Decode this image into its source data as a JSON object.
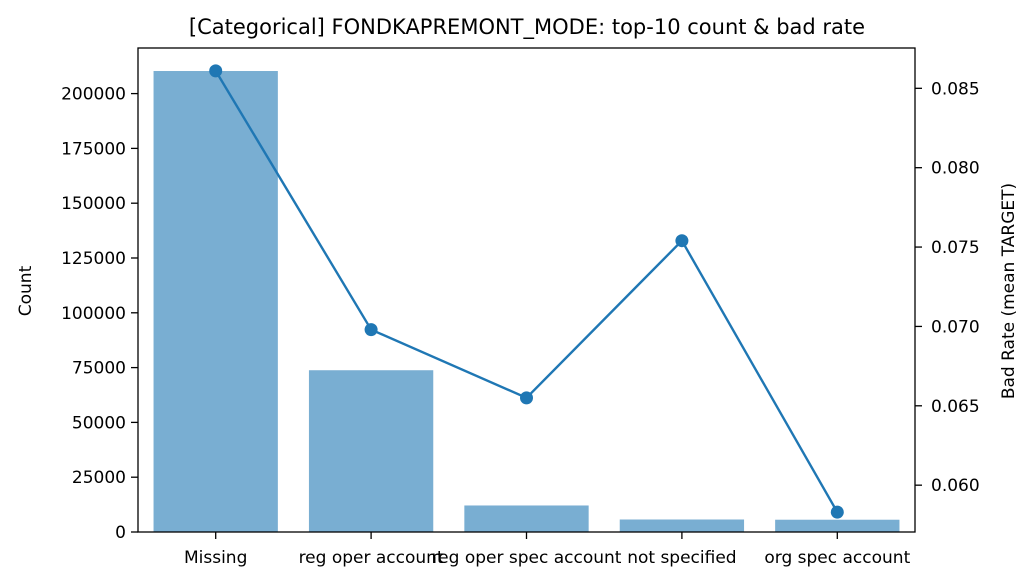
{
  "chart_data": {
    "type": "bar",
    "title": "[Categorical] FONDKAPREMONT_MODE: top-10 count & bad rate",
    "categories": [
      "Missing",
      "reg oper account",
      "reg oper spec account",
      "not specified",
      "org spec account"
    ],
    "series": [
      {
        "type": "bar",
        "axis": "left",
        "values": [
          210300,
          73800,
          12100,
          5700,
          5600
        ],
        "color": "#79aed2"
      },
      {
        "type": "line",
        "axis": "right",
        "values": [
          0.0861,
          0.0698,
          0.0655,
          0.0754,
          0.0583
        ],
        "color": "#1f77b4"
      }
    ],
    "xlabel": "",
    "ylabel": "Count",
    "y2label": "Bad Rate (mean TARGET)",
    "ylim": [
      0,
      220800
    ],
    "y2lim": [
      0.05705,
      0.08754
    ],
    "yticks": [
      0,
      25000,
      50000,
      75000,
      100000,
      125000,
      150000,
      175000,
      200000
    ],
    "y2ticks": [
      0.06,
      0.065,
      0.07,
      0.075,
      0.08,
      0.085
    ],
    "y2ticklabels": [
      "0.060",
      "0.065",
      "0.070",
      "0.075",
      "0.080",
      "0.085"
    ],
    "grid": false,
    "legend": "none"
  }
}
